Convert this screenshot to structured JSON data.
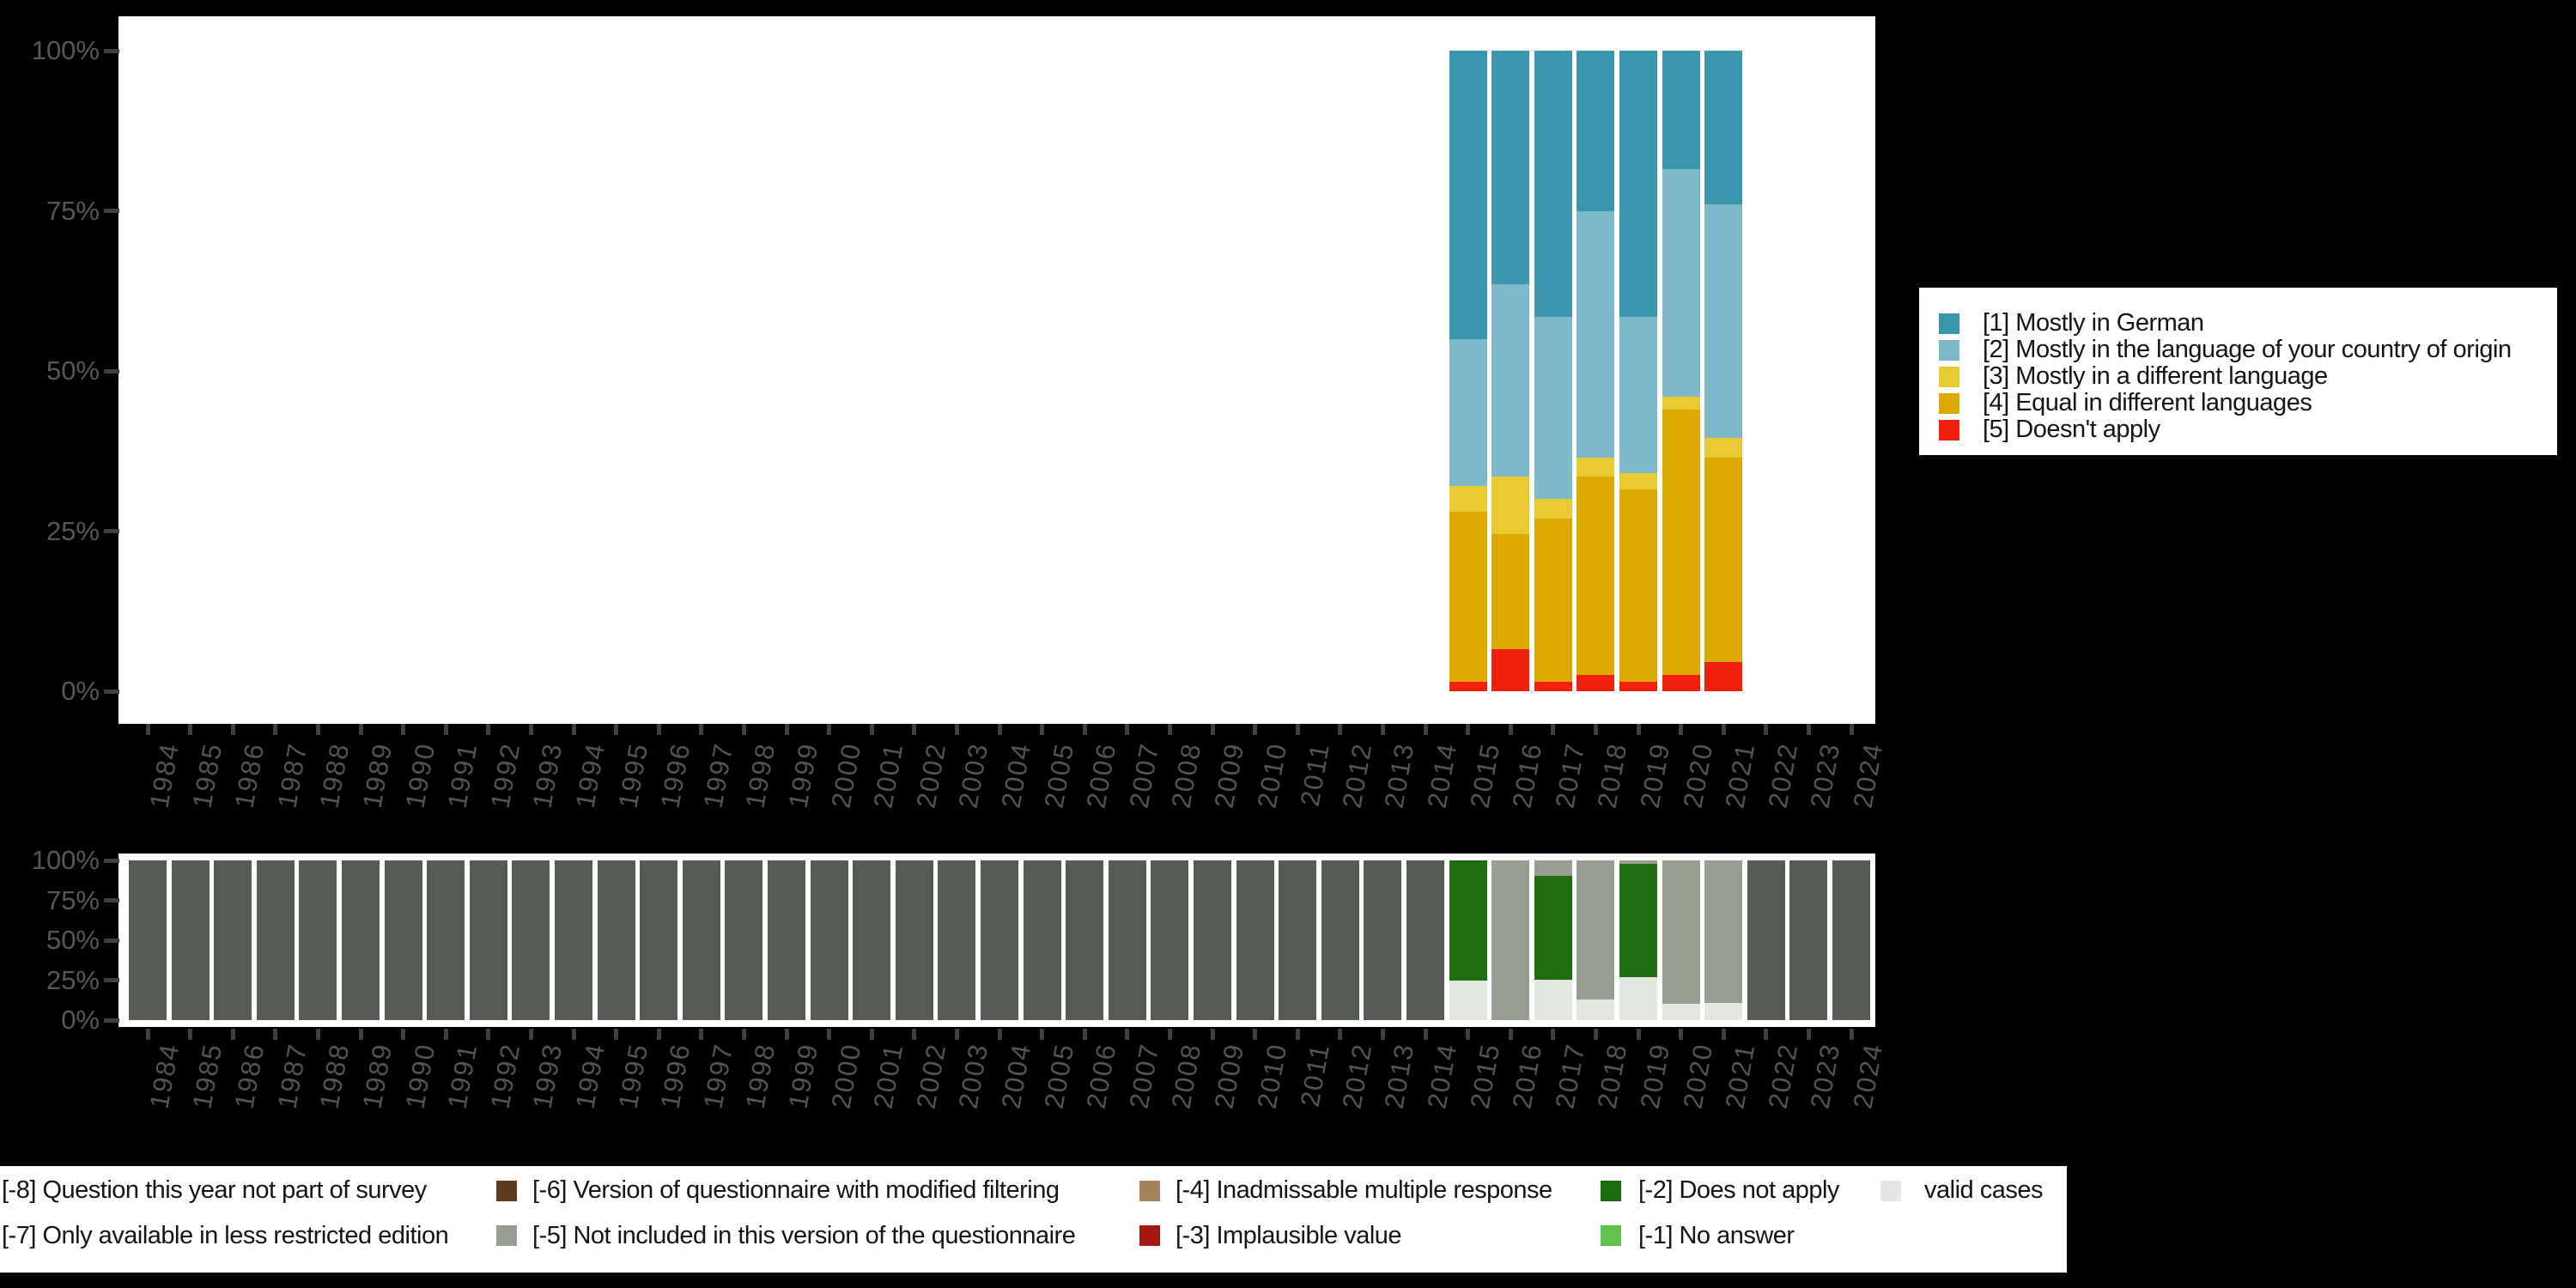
{
  "canvas": {
    "background": "#000000",
    "panel_background": "#ffffff",
    "tick_color": "#3f3f3f",
    "axis_label_color": "#565656",
    "legend_text_color": "#141414"
  },
  "y_axis_ticks": [
    "100%",
    "75%",
    "50%",
    "25%",
    "0%"
  ],
  "upper_legend": {
    "items": [
      {
        "label": "[1] Mostly in German",
        "color": "#3996ad"
      },
      {
        "label": "[2] Mostly in the language of your country of origin",
        "color": "#7db9c9"
      },
      {
        "label": "[3] Mostly in a different language",
        "color": "#e8ca32"
      },
      {
        "label": "[4] Equal in different languages",
        "color": "#dba900"
      },
      {
        "label": "[5] Doesn't apply",
        "color": "#f1200c"
      }
    ]
  },
  "bottom_legend": {
    "rows": [
      [
        {
          "label": "[-8] Question this year not part of survey",
          "swatch_visible": false
        },
        {
          "label": "[-6] Version of questionnaire with modified filtering",
          "color": "#5e3b1e",
          "swatch_visible": true
        },
        {
          "label": "[-4] Inadmissable multiple response",
          "color": "#a5825c",
          "swatch_visible": true
        },
        {
          "label": "[-2] Does not apply",
          "color": "#1a6c0e",
          "swatch_visible": true
        },
        {
          "label": "valid cases",
          "color": "#e3e8e0",
          "swatch_visible": true
        }
      ],
      [
        {
          "label": "[-7] Only available in less restricted edition",
          "swatch_visible": false
        },
        {
          "label": "[-5] Not included in this version of the questionnaire",
          "color": "#999e93",
          "swatch_visible": true
        },
        {
          "label": "[-3] Implausible value",
          "color": "#a51a10",
          "swatch_visible": true
        },
        {
          "label": "[-1] No answer",
          "color": "#5ec24d",
          "swatch_visible": true
        }
      ]
    ]
  },
  "chart_data": [
    {
      "type": "bar",
      "stacked": true,
      "title": "",
      "xlabel": "",
      "ylabel": "",
      "ylim": [
        0,
        100
      ],
      "yticks": [
        "0%",
        "25%",
        "50%",
        "75%",
        "100%"
      ],
      "grid": false,
      "legend_position": "right",
      "categories": [
        "1984",
        "1985",
        "1986",
        "1987",
        "1988",
        "1989",
        "1990",
        "1991",
        "1992",
        "1993",
        "1994",
        "1995",
        "1996",
        "1997",
        "1998",
        "1999",
        "2000",
        "2001",
        "2002",
        "2003",
        "2004",
        "2005",
        "2006",
        "2007",
        "2008",
        "2009",
        "2010",
        "2011",
        "2012",
        "2013",
        "2014",
        "2015",
        "2016",
        "2017",
        "2018",
        "2019",
        "2020",
        "2021",
        "2022",
        "2023",
        "2024"
      ],
      "series": [
        {
          "name": "[1] Mostly in German",
          "color": "#3996ad",
          "values": [
            0,
            0,
            0,
            0,
            0,
            0,
            0,
            0,
            0,
            0,
            0,
            0,
            0,
            0,
            0,
            0,
            0,
            0,
            0,
            0,
            0,
            0,
            0,
            0,
            0,
            0,
            0,
            0,
            0,
            0,
            0,
            45,
            36.5,
            41.5,
            25,
            41.5,
            18.5,
            24,
            0,
            0,
            0
          ]
        },
        {
          "name": "[2] Mostly in the language of your country of origin",
          "color": "#7db9c9",
          "values": [
            0,
            0,
            0,
            0,
            0,
            0,
            0,
            0,
            0,
            0,
            0,
            0,
            0,
            0,
            0,
            0,
            0,
            0,
            0,
            0,
            0,
            0,
            0,
            0,
            0,
            0,
            0,
            0,
            0,
            0,
            0,
            23,
            30,
            28.5,
            38.5,
            24.5,
            35.5,
            36.5,
            0,
            0,
            0
          ]
        },
        {
          "name": "[3] Mostly in a different language",
          "color": "#e8ca32",
          "values": [
            0,
            0,
            0,
            0,
            0,
            0,
            0,
            0,
            0,
            0,
            0,
            0,
            0,
            0,
            0,
            0,
            0,
            0,
            0,
            0,
            0,
            0,
            0,
            0,
            0,
            0,
            0,
            0,
            0,
            0,
            0,
            4,
            9,
            3,
            3,
            2.5,
            2,
            3,
            0,
            0,
            0
          ]
        },
        {
          "name": "[4] Equal in different languages",
          "color": "#dba900",
          "values": [
            0,
            0,
            0,
            0,
            0,
            0,
            0,
            0,
            0,
            0,
            0,
            0,
            0,
            0,
            0,
            0,
            0,
            0,
            0,
            0,
            0,
            0,
            0,
            0,
            0,
            0,
            0,
            0,
            0,
            0,
            0,
            26.5,
            18,
            25.5,
            31,
            30,
            41.5,
            32,
            0,
            0,
            0
          ]
        },
        {
          "name": "[5] Doesn't apply",
          "color": "#f1200c",
          "values": [
            0,
            0,
            0,
            0,
            0,
            0,
            0,
            0,
            0,
            0,
            0,
            0,
            0,
            0,
            0,
            0,
            0,
            0,
            0,
            0,
            0,
            0,
            0,
            0,
            0,
            0,
            0,
            0,
            0,
            0,
            0,
            1.5,
            6.5,
            1.5,
            2.5,
            1.5,
            2.5,
            4.5,
            0,
            0,
            0
          ]
        }
      ]
    },
    {
      "type": "bar",
      "stacked": true,
      "title": "",
      "xlabel": "",
      "ylabel": "",
      "ylim": [
        0,
        100
      ],
      "yticks": [
        "0%",
        "25%",
        "50%",
        "75%",
        "100%"
      ],
      "grid": false,
      "legend_position": "bottom",
      "categories": [
        "1984",
        "1985",
        "1986",
        "1987",
        "1988",
        "1989",
        "1990",
        "1991",
        "1992",
        "1993",
        "1994",
        "1995",
        "1996",
        "1997",
        "1998",
        "1999",
        "2000",
        "2001",
        "2002",
        "2003",
        "2004",
        "2005",
        "2006",
        "2007",
        "2008",
        "2009",
        "2010",
        "2011",
        "2012",
        "2013",
        "2014",
        "2015",
        "2016",
        "2017",
        "2018",
        "2019",
        "2020",
        "2021",
        "2022",
        "2023",
        "2024"
      ],
      "series": [
        {
          "name": "[-8] Question this year not part of survey",
          "color": "#565c54",
          "values": [
            100,
            100,
            100,
            100,
            100,
            100,
            100,
            100,
            100,
            100,
            100,
            100,
            100,
            100,
            100,
            100,
            100,
            100,
            100,
            100,
            100,
            100,
            100,
            100,
            100,
            100,
            100,
            100,
            100,
            100,
            100,
            0,
            0,
            0,
            0,
            0,
            0,
            0,
            100,
            100,
            100
          ]
        },
        {
          "name": "[-5] Not included in this version of the questionnaire",
          "color": "#999e93",
          "values": [
            0,
            0,
            0,
            0,
            0,
            0,
            0,
            0,
            0,
            0,
            0,
            0,
            0,
            0,
            0,
            0,
            0,
            0,
            0,
            0,
            0,
            0,
            0,
            0,
            0,
            0,
            0,
            0,
            0,
            0,
            0,
            0,
            100,
            9.5,
            87,
            2,
            90,
            89.5,
            0,
            0,
            0
          ]
        },
        {
          "name": "[-2] Does not apply",
          "color": "#206c10",
          "values": [
            0,
            0,
            0,
            0,
            0,
            0,
            0,
            0,
            0,
            0,
            0,
            0,
            0,
            0,
            0,
            0,
            0,
            0,
            0,
            0,
            0,
            0,
            0,
            0,
            0,
            0,
            0,
            0,
            0,
            0,
            0,
            75.5,
            0,
            65.5,
            0,
            71,
            0,
            0,
            0,
            0,
            0
          ]
        },
        {
          "name": "valid cases",
          "color": "#e2e7e0",
          "values": [
            0,
            0,
            0,
            0,
            0,
            0,
            0,
            0,
            0,
            0,
            0,
            0,
            0,
            0,
            0,
            0,
            0,
            0,
            0,
            0,
            0,
            0,
            0,
            0,
            0,
            0,
            0,
            0,
            0,
            0,
            0,
            24.5,
            0,
            25,
            13,
            27,
            10,
            10.5,
            0,
            0,
            0
          ]
        }
      ]
    }
  ]
}
